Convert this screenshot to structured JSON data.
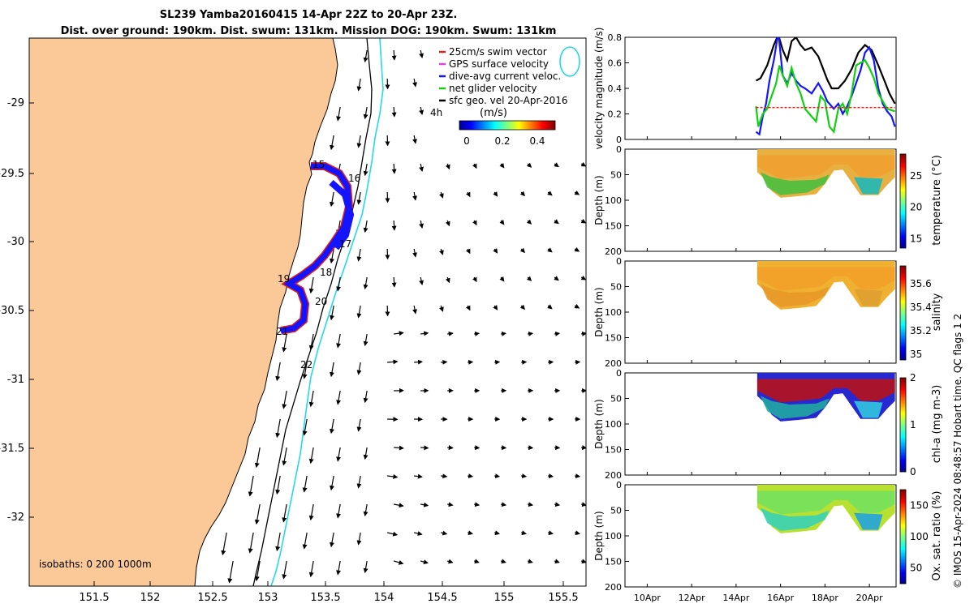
{
  "header": {
    "line1": "SL239 Yamba20160415 14-Apr 22Z to 20-Apr 23Z.",
    "line2": "Dist. over ground: 190km. Dist. swum: 131km. Mission DOG: 190km. Swum: 131km"
  },
  "colors": {
    "land": "#fbc898",
    "glider_blue": "#1414ff",
    "glider_red": "#e0201a",
    "isobath_cyan": "#25d8e8",
    "green": "#10d010"
  },
  "map": {
    "legend": [
      {
        "label": "25cm/s swim vector",
        "color": "#e0201a"
      },
      {
        "label": "GPS surface velocity",
        "color": "#e040e0"
      },
      {
        "label": "dive-avg current veloc.",
        "color": "#1414ff"
      },
      {
        "label": "net glider velocity",
        "color": "#10d010"
      },
      {
        "label": "sfc geo. vel 20-Apr-2016",
        "color": "#000000"
      }
    ],
    "tag_4h": "4h",
    "colorbar_unit": "(m/s)",
    "colorbar_ticks": [
      "0",
      "0.2",
      "0.4"
    ],
    "isobaths_label": "isobaths: 0   200  1000m",
    "x_ticks": [
      "151.5",
      "152",
      "152.5",
      "153",
      "153.5",
      "154",
      "154.5",
      "155",
      "155.5"
    ],
    "y_ticks": [
      "-29",
      "-29.5",
      "-30",
      "-30.5",
      "-31",
      "-31.5",
      "-32"
    ],
    "day_labels": [
      "15",
      "16",
      "17",
      "18",
      "19",
      "20",
      "21",
      "22"
    ]
  },
  "chart_data": [
    {
      "type": "line",
      "ylabel": "velocity magnitude (m/s)",
      "ylim": [
        0,
        0.8
      ],
      "y_ticks": [
        "0",
        "0.2",
        "0.4",
        "0.6",
        "0.8"
      ],
      "x_range_days": [
        9,
        21.2
      ],
      "series": [
        {
          "color": "#000000",
          "points": [
            [
              14.9,
              0.46
            ],
            [
              15.1,
              0.48
            ],
            [
              15.4,
              0.58
            ],
            [
              15.7,
              0.74
            ],
            [
              15.9,
              0.82
            ],
            [
              16.1,
              0.7
            ],
            [
              16.3,
              0.62
            ],
            [
              16.5,
              0.77
            ],
            [
              16.7,
              0.8
            ],
            [
              16.9,
              0.74
            ],
            [
              17.1,
              0.7
            ],
            [
              17.4,
              0.72
            ],
            [
              17.7,
              0.65
            ],
            [
              17.9,
              0.56
            ],
            [
              18.1,
              0.47
            ],
            [
              18.3,
              0.4
            ],
            [
              18.6,
              0.4
            ],
            [
              18.9,
              0.46
            ],
            [
              19.2,
              0.55
            ],
            [
              19.5,
              0.68
            ],
            [
              19.8,
              0.74
            ],
            [
              20.1,
              0.7
            ],
            [
              20.4,
              0.58
            ],
            [
              20.7,
              0.45
            ],
            [
              20.9,
              0.36
            ],
            [
              21.15,
              0.28
            ]
          ]
        },
        {
          "color": "#1414ff",
          "points": [
            [
              14.9,
              0.06
            ],
            [
              15.05,
              0.04
            ],
            [
              15.2,
              0.18
            ],
            [
              15.35,
              0.28
            ],
            [
              15.5,
              0.46
            ],
            [
              15.7,
              0.62
            ],
            [
              15.9,
              0.84
            ],
            [
              16.1,
              0.5
            ],
            [
              16.3,
              0.44
            ],
            [
              16.5,
              0.52
            ],
            [
              16.7,
              0.46
            ],
            [
              16.9,
              0.42
            ],
            [
              17.1,
              0.4
            ],
            [
              17.4,
              0.36
            ],
            [
              17.7,
              0.44
            ],
            [
              17.9,
              0.38
            ],
            [
              18.1,
              0.3
            ],
            [
              18.4,
              0.24
            ],
            [
              18.6,
              0.28
            ],
            [
              18.8,
              0.2
            ],
            [
              19.0,
              0.26
            ],
            [
              19.2,
              0.34
            ],
            [
              19.4,
              0.44
            ],
            [
              19.6,
              0.54
            ],
            [
              19.8,
              0.68
            ],
            [
              20.0,
              0.72
            ],
            [
              20.2,
              0.62
            ],
            [
              20.4,
              0.4
            ],
            [
              20.6,
              0.28
            ],
            [
              20.8,
              0.22
            ],
            [
              21.0,
              0.18
            ],
            [
              21.15,
              0.1
            ]
          ]
        },
        {
          "color": "#10d010",
          "points": [
            [
              14.9,
              0.26
            ],
            [
              15.0,
              0.1
            ],
            [
              15.2,
              0.2
            ],
            [
              15.4,
              0.24
            ],
            [
              15.6,
              0.34
            ],
            [
              15.8,
              0.44
            ],
            [
              15.95,
              0.58
            ],
            [
              16.1,
              0.5
            ],
            [
              16.3,
              0.42
            ],
            [
              16.5,
              0.56
            ],
            [
              16.7,
              0.44
            ],
            [
              16.9,
              0.36
            ],
            [
              17.1,
              0.24
            ],
            [
              17.3,
              0.2
            ],
            [
              17.6,
              0.14
            ],
            [
              17.8,
              0.34
            ],
            [
              18.0,
              0.3
            ],
            [
              18.2,
              0.1
            ],
            [
              18.4,
              0.06
            ],
            [
              18.6,
              0.24
            ],
            [
              18.8,
              0.28
            ],
            [
              19.0,
              0.2
            ],
            [
              19.2,
              0.36
            ],
            [
              19.4,
              0.58
            ],
            [
              19.6,
              0.6
            ],
            [
              19.8,
              0.62
            ],
            [
              20.0,
              0.56
            ],
            [
              20.2,
              0.48
            ],
            [
              20.4,
              0.36
            ],
            [
              20.6,
              0.3
            ],
            [
              20.8,
              0.24
            ],
            [
              21.15,
              0.22
            ]
          ]
        },
        {
          "color": "#e0201a",
          "points": [
            [
              14.9,
              0.25
            ],
            [
              21.15,
              0.25
            ]
          ]
        }
      ]
    },
    {
      "type": "heatmap",
      "ylabel": "Depth (m)",
      "ylim": [
        0,
        200
      ],
      "y_ticks": [
        "0",
        "50",
        "100",
        "150",
        "200"
      ],
      "colorbar_label": "temperature (°C)",
      "colorbar_ticks": [
        "15",
        "20",
        "25"
      ]
    },
    {
      "type": "heatmap",
      "ylabel": "Depth (m)",
      "ylim": [
        0,
        200
      ],
      "y_ticks": [
        "0",
        "50",
        "100",
        "150",
        "200"
      ],
      "colorbar_label": "salinity",
      "colorbar_ticks": [
        "35",
        "35.2",
        "35.4",
        "35.6"
      ]
    },
    {
      "type": "heatmap",
      "ylabel": "Depth (m)",
      "ylim": [
        0,
        200
      ],
      "y_ticks": [
        "0",
        "50",
        "100",
        "150",
        "200"
      ],
      "colorbar_label": "chl-a (mg m-3)",
      "colorbar_ticks": [
        "0",
        "1",
        "2"
      ]
    },
    {
      "type": "heatmap",
      "ylabel": "Depth (m)",
      "ylim": [
        0,
        200
      ],
      "y_ticks": [
        "0",
        "50",
        "100",
        "150",
        "200"
      ],
      "colorbar_label": "Ox. sat. ratio (%)",
      "colorbar_ticks": [
        "50",
        "100",
        "150"
      ]
    }
  ],
  "time_axis": {
    "x_ticks": [
      "10Apr",
      "12Apr",
      "14Apr",
      "16Apr",
      "18Apr",
      "20Apr"
    ]
  },
  "side_label": {
    "qc_text": "salinity  Hobart time. QC flags 1  2",
    "imos_text": "© IMOS 15-Apr-2024 08:48:57 Hobart time. QC flags 1  2"
  }
}
